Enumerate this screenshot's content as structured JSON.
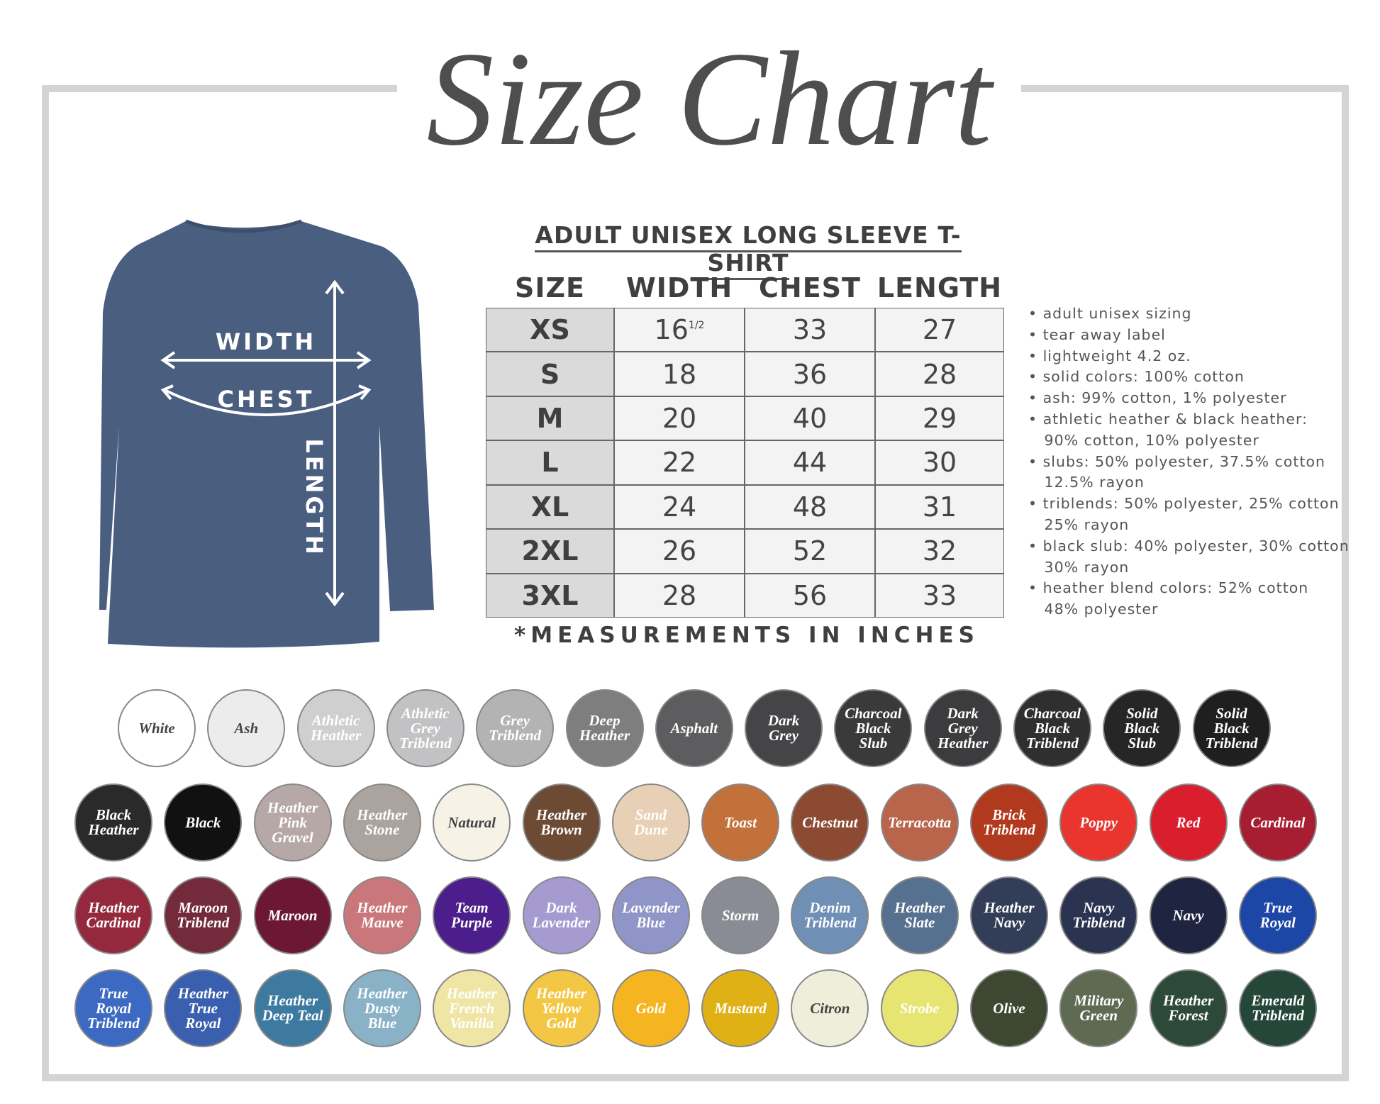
{
  "header": {
    "title": "Size Chart"
  },
  "shirt": {
    "width_label": "WIDTH",
    "chest_label": "CHEST",
    "length_label": "LENGTH"
  },
  "table": {
    "title": "ADULT UNISEX LONG SLEEVE T-SHIRT",
    "columns": [
      "SIZE",
      "WIDTH",
      "CHEST",
      "LENGTH"
    ],
    "rows": [
      [
        "XS",
        {
          "whole": 16,
          "fraction": "1/2"
        },
        33,
        27
      ],
      [
        "S",
        18,
        36,
        28
      ],
      [
        "M",
        20,
        40,
        29
      ],
      [
        "L",
        22,
        44,
        30
      ],
      [
        "XL",
        24,
        48,
        31
      ],
      [
        "2XL",
        26,
        52,
        32
      ],
      [
        "3XL",
        28,
        56,
        33
      ]
    ],
    "footnote": "*MEASUREMENTS IN INCHES"
  },
  "notes": [
    "• adult unisex sizing",
    "• tear away label",
    "• lightweight 4.2 oz.",
    "• solid colors: 100% cotton",
    "• ash: 99% cotton, 1% polyester",
    "• athletic heather & black heather:",
    "   90% cotton, 10% polyester",
    "• slubs: 50% polyester, 37.5% cotton",
    "   12.5% rayon",
    "• triblends: 50% polyester, 25% cotton",
    "   25% rayon",
    "• black slub: 40% polyester, 30% cotton",
    "   30% rayon",
    "• heather blend colors: 52% cotton",
    "   48% polyester"
  ],
  "swatches": [
    [
      {
        "name": "White",
        "color": "#ffffff",
        "dark_label": true
      },
      {
        "name": "Ash",
        "color": "#ececec",
        "dark_label": true
      },
      {
        "name": "Athletic Heather",
        "color": "#cfcfcf"
      },
      {
        "name": "Athletic Grey Triblend",
        "color": "#c2c2c4"
      },
      {
        "name": "Grey Triblend",
        "color": "#b3b3b3"
      },
      {
        "name": "Deep Heather",
        "color": "#7e7e7e"
      },
      {
        "name": "Asphalt",
        "color": "#5d5d5f"
      },
      {
        "name": "Dark Grey",
        "color": "#454547"
      },
      {
        "name": "Charcoal Black Slub",
        "color": "#3a3a3a"
      },
      {
        "name": "Dark Grey Heather",
        "color": "#3c3c3e"
      },
      {
        "name": "Charcoal Black Triblend",
        "color": "#2f2f2f"
      },
      {
        "name": "Solid Black Slub",
        "color": "#262626"
      },
      {
        "name": "Solid Black Triblend",
        "color": "#1f1f1f"
      }
    ],
    [
      {
        "name": "Black Heather",
        "color": "#2a2a2a"
      },
      {
        "name": "Black",
        "color": "#111111"
      },
      {
        "name": "Heather Pink Gravel",
        "color": "#b5a8a7"
      },
      {
        "name": "Heather Stone",
        "color": "#aaa39e"
      },
      {
        "name": "Natural",
        "color": "#f6f2e6",
        "dark_label": true
      },
      {
        "name": "Heather Brown",
        "color": "#6d4a34"
      },
      {
        "name": "Sand Dune",
        "color": "#e8d0b6"
      },
      {
        "name": "Toast",
        "color": "#c2713a"
      },
      {
        "name": "Chestnut",
        "color": "#8c4a32"
      },
      {
        "name": "Terracotta",
        "color": "#b8654b"
      },
      {
        "name": "Brick Triblend",
        "color": "#b1391d"
      },
      {
        "name": "Poppy",
        "color": "#e9352e"
      },
      {
        "name": "Red",
        "color": "#d91e2e"
      },
      {
        "name": "Cardinal",
        "color": "#a71d32"
      }
    ],
    [
      {
        "name": "Heather Cardinal",
        "color": "#94283c"
      },
      {
        "name": "Maroon Triblend",
        "color": "#732a3a"
      },
      {
        "name": "Maroon",
        "color": "#6c1734"
      },
      {
        "name": "Heather Mauve",
        "color": "#c9777b"
      },
      {
        "name": "Team Purple",
        "color": "#4b1e8c"
      },
      {
        "name": "Dark Lavender",
        "color": "#a59bd1"
      },
      {
        "name": "Lavender Blue",
        "color": "#8f96c7"
      },
      {
        "name": "Storm",
        "color": "#8a8c95"
      },
      {
        "name": "Denim Triblend",
        "color": "#6f8fb4"
      },
      {
        "name": "Heather Slate",
        "color": "#56718f"
      },
      {
        "name": "Heather Navy",
        "color": "#323e58"
      },
      {
        "name": "Navy Triblend",
        "color": "#2a3450"
      },
      {
        "name": "Navy",
        "color": "#1f2540"
      },
      {
        "name": "True Royal",
        "color": "#1c47a6"
      }
    ],
    [
      {
        "name": "True Royal Triblend",
        "color": "#3c6ac2"
      },
      {
        "name": "Heather True Royal",
        "color": "#3a5fae"
      },
      {
        "name": "Heather Deep Teal",
        "color": "#3e7aa0"
      },
      {
        "name": "Heather Dusty Blue",
        "color": "#8ab2c7"
      },
      {
        "name": "Heather French Vanilla",
        "color": "#efe6a6"
      },
      {
        "name": "Heather Yellow Gold",
        "color": "#f3c743"
      },
      {
        "name": "Gold",
        "color": "#f4b521"
      },
      {
        "name": "Mustard",
        "color": "#dfb115"
      },
      {
        "name": "Citron",
        "color": "#efeeda",
        "dark_label": true
      },
      {
        "name": "Strobe",
        "color": "#e7e572"
      },
      {
        "name": "Olive",
        "color": "#3d4731"
      },
      {
        "name": "Military Green",
        "color": "#5e6a52"
      },
      {
        "name": "Heather Forest",
        "color": "#2d4a38"
      },
      {
        "name": "Emerald Triblend",
        "color": "#25473a"
      }
    ]
  ]
}
